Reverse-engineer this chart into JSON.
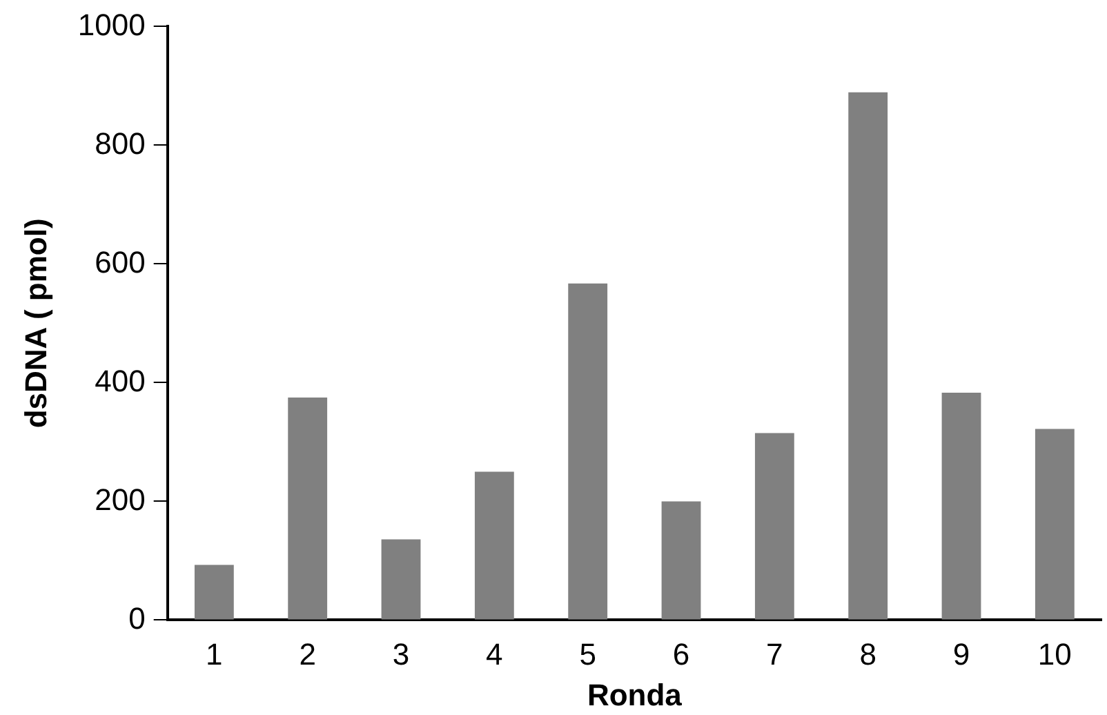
{
  "chart_data": {
    "type": "bar",
    "xlabel": "Ronda",
    "ylabel": "dsDNA ( pmol)",
    "categories": [
      "1",
      "2",
      "3",
      "4",
      "5",
      "6",
      "7",
      "8",
      "9",
      "10"
    ],
    "values": [
      93,
      375,
      136,
      250,
      567,
      200,
      315,
      889,
      383,
      322
    ],
    "color": "#808080",
    "ylim": [
      0,
      1000
    ],
    "yticks": [
      0,
      200,
      400,
      600,
      800,
      1000
    ],
    "grid": false,
    "legend": false
  }
}
